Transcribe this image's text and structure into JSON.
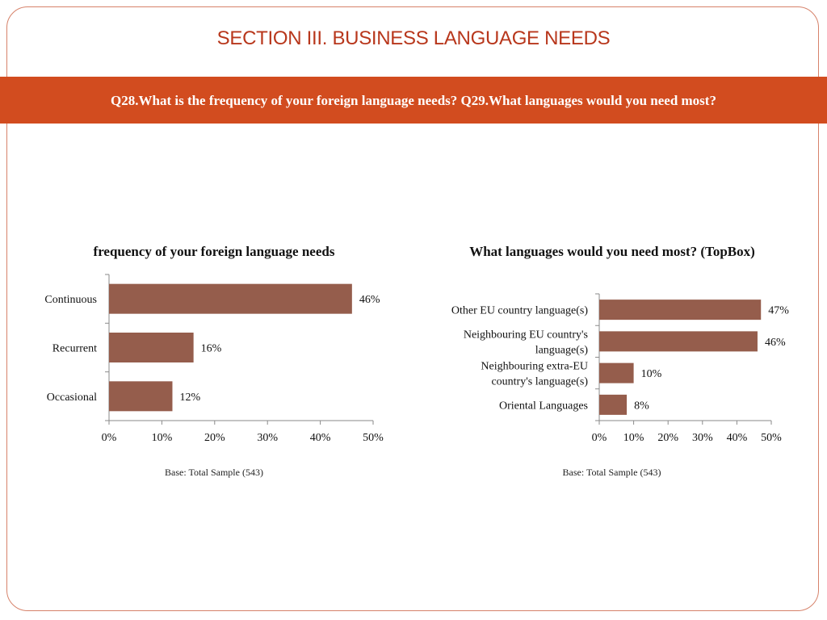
{
  "header": {
    "title": "SECTION III. BUSINESS LANGUAGE NEEDS",
    "question": "Q28.What is the frequency of your foreign language needs? Q29.What languages would you need most?"
  },
  "colors": {
    "accent": "#d24c1f",
    "title": "#b8371c",
    "bar": "#955d4c",
    "frame": "#d6826a"
  },
  "chart_data": [
    {
      "type": "bar",
      "orientation": "horizontal",
      "title": "frequency of your foreign language needs",
      "categories": [
        "Continuous",
        "Recurrent",
        "Occasional"
      ],
      "values": [
        46,
        16,
        12
      ],
      "value_labels": [
        "46%",
        "16%",
        "12%"
      ],
      "xlim": [
        0,
        50
      ],
      "ticks": [
        0,
        10,
        20,
        30,
        40,
        50
      ],
      "tick_labels": [
        "0%",
        "10%",
        "20%",
        "30%",
        "40%",
        "50%"
      ],
      "note": "Base: Total Sample (543)",
      "grid": false
    },
    {
      "type": "bar",
      "orientation": "horizontal",
      "title": "What languages would you need most? (TopBox)",
      "categories": [
        "Other EU country language(s)",
        "Neighbouring EU country's language(s)",
        "Neighbouring extra-EU country's language(s)",
        "Oriental Languages"
      ],
      "values": [
        47,
        46,
        10,
        8
      ],
      "value_labels": [
        "47%",
        "46%",
        "10%",
        "8%"
      ],
      "xlim": [
        0,
        50
      ],
      "ticks": [
        0,
        10,
        20,
        30,
        40,
        50
      ],
      "tick_labels": [
        "0%",
        "10%",
        "20%",
        "30%",
        "40%",
        "50%"
      ],
      "note": "Base: Total Sample (543)",
      "grid": false
    }
  ]
}
